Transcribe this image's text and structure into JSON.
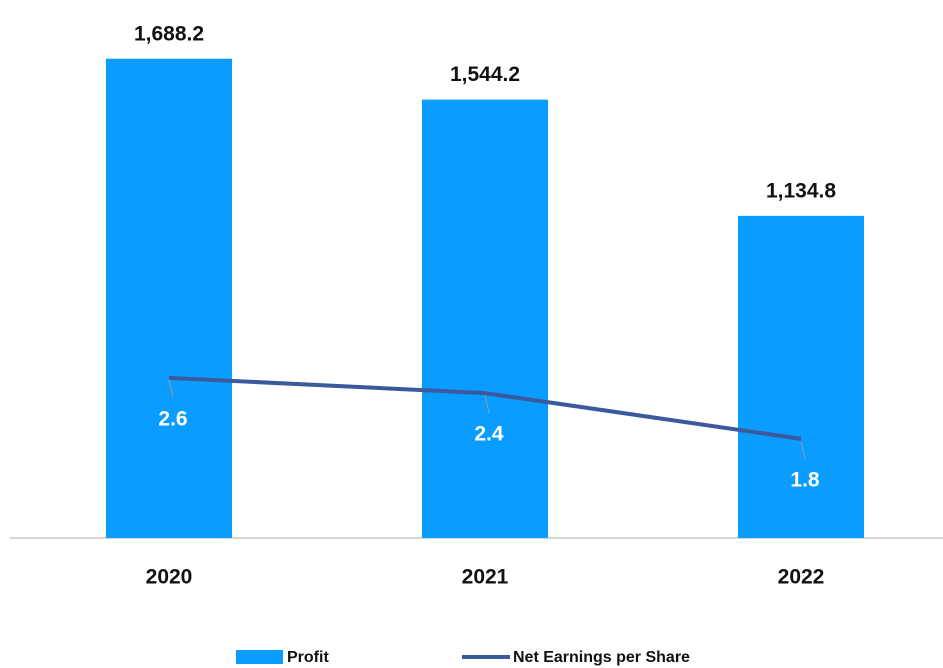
{
  "chart_data": {
    "type": "combo",
    "categories": [
      "2020",
      "2021",
      "2022"
    ],
    "series": [
      {
        "name": "Profit",
        "type": "bar",
        "color": "#0a9cff",
        "values": [
          1688.2,
          1544.2,
          1134.8
        ],
        "value_labels": [
          "1,688.2",
          "1,544.2",
          "1,134.8"
        ]
      },
      {
        "name": "Net Earnings per Share",
        "type": "line",
        "axis": "y2",
        "color": "#3a5a9c",
        "values": [
          2.6,
          2.4,
          1.8
        ]
      }
    ],
    "ylim": [
      0,
      1800
    ],
    "y2lim": [
      0.5,
      7.2
    ],
    "legend": "bottom"
  }
}
